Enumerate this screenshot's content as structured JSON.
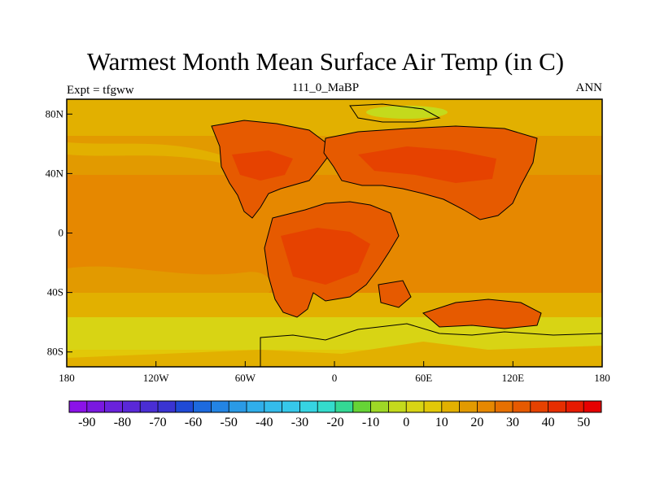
{
  "title": "Warmest Month Mean Surface Air Temp (in C)",
  "subtitle_left": "Expt = tfgww",
  "subtitle_center": "111_0_MaBP",
  "subtitle_right": "ANN",
  "map": {
    "lat_ticks": [
      {
        "value": 80,
        "label": "80N"
      },
      {
        "value": 40,
        "label": "40N"
      },
      {
        "value": 0,
        "label": "0"
      },
      {
        "value": -40,
        "label": "40S"
      },
      {
        "value": -80,
        "label": "80S"
      }
    ],
    "lon_ticks": [
      {
        "value": -180,
        "label": "180"
      },
      {
        "value": -120,
        "label": "120W"
      },
      {
        "value": -60,
        "label": "60W"
      },
      {
        "value": 0,
        "label": "0"
      },
      {
        "value": 60,
        "label": "60E"
      },
      {
        "value": 120,
        "label": "120E"
      },
      {
        "value": 180,
        "label": "180"
      }
    ],
    "lon_range": [
      -180,
      180
    ],
    "lat_range": [
      -90,
      90
    ]
  },
  "colorbar": {
    "colors": [
      "#8b12e8",
      "#7a18e0",
      "#6a22dc",
      "#5a28d8",
      "#4a2ed4",
      "#3a34d2",
      "#1f4ad6",
      "#1d6ade",
      "#2384e4",
      "#2a9ae6",
      "#30aeea",
      "#34bceb",
      "#36c8ea",
      "#36d4e2",
      "#34dccc",
      "#34d894",
      "#66d436",
      "#9ed826",
      "#c4da1c",
      "#d8d414",
      "#e2c808",
      "#e2b000",
      "#e29a00",
      "#e68800",
      "#e67000",
      "#e65a00",
      "#e64200",
      "#e62e00",
      "#e61a00",
      "#e60000"
    ],
    "labels": [
      "-90",
      "-80",
      "-70",
      "-60",
      "-50",
      "-40",
      "-30",
      "-20",
      "-10",
      "0",
      "10",
      "20",
      "30",
      "40",
      "50"
    ]
  },
  "palette": {
    "ocean_subpolar": "#d8d414",
    "ocean_mid": "#e2b000",
    "ocean_warm": "#e68800",
    "land_hot": "#e65a00",
    "land_hotter": "#e64200",
    "arctic": "#c4da1c"
  }
}
